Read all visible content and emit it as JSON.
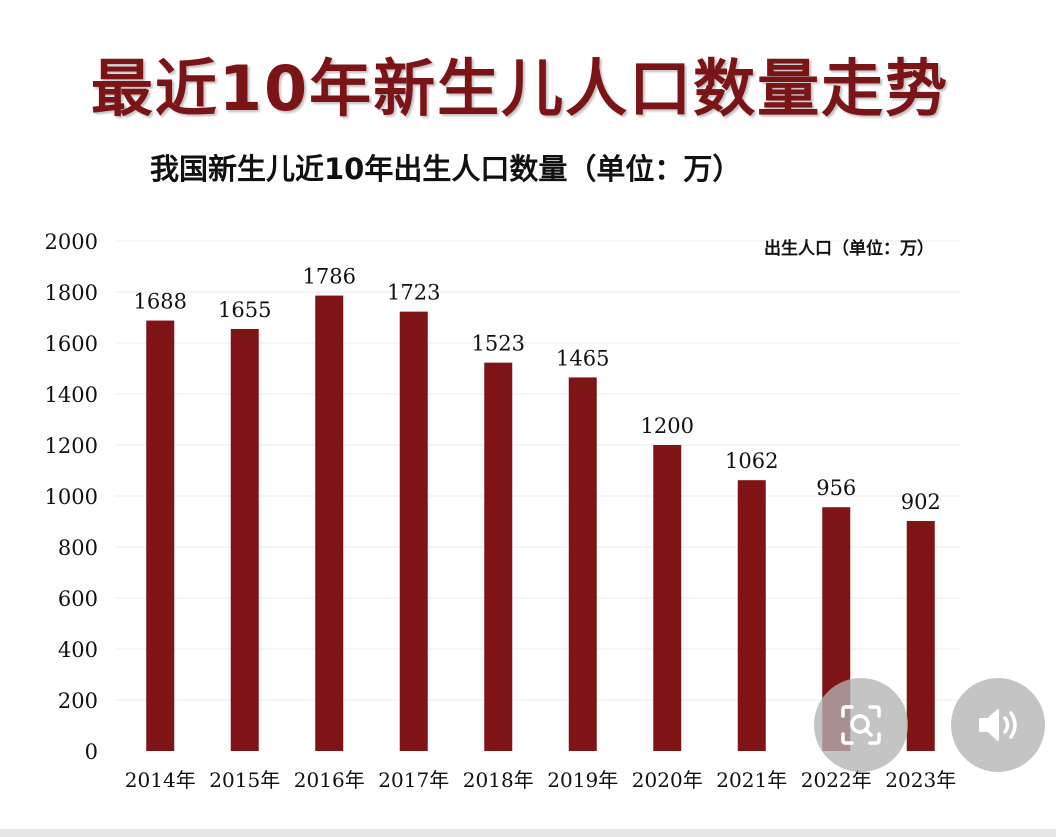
{
  "main_title": "最近10年新生儿人口数量走势",
  "chart_data": {
    "type": "bar",
    "title": "我国新生儿近10年出生人口数量（单位：万）",
    "legend": "出生人口（单位：万）",
    "legend_position": "top-right",
    "categories": [
      "2014年",
      "2015年",
      "2016年",
      "2017年",
      "2018年",
      "2019年",
      "2020年",
      "2021年",
      "2022年",
      "2023年"
    ],
    "values": [
      1688,
      1655,
      1786,
      1723,
      1523,
      1465,
      1200,
      1062,
      956,
      902
    ],
    "data_labels": [
      "1688",
      "1655",
      "1786",
      "1723",
      "1523",
      "1465",
      "1200",
      "1062",
      "956",
      "902"
    ],
    "ylim": [
      0,
      2000
    ],
    "yticks": [
      0,
      200,
      400,
      600,
      800,
      1000,
      1200,
      1400,
      1600,
      1800,
      2000
    ],
    "xlabel": "",
    "ylabel": "",
    "grid": true,
    "bar_color": "#7f1416"
  },
  "overlay": {
    "scan_icon": "image-search-icon",
    "sound_icon": "speaker-icon"
  }
}
